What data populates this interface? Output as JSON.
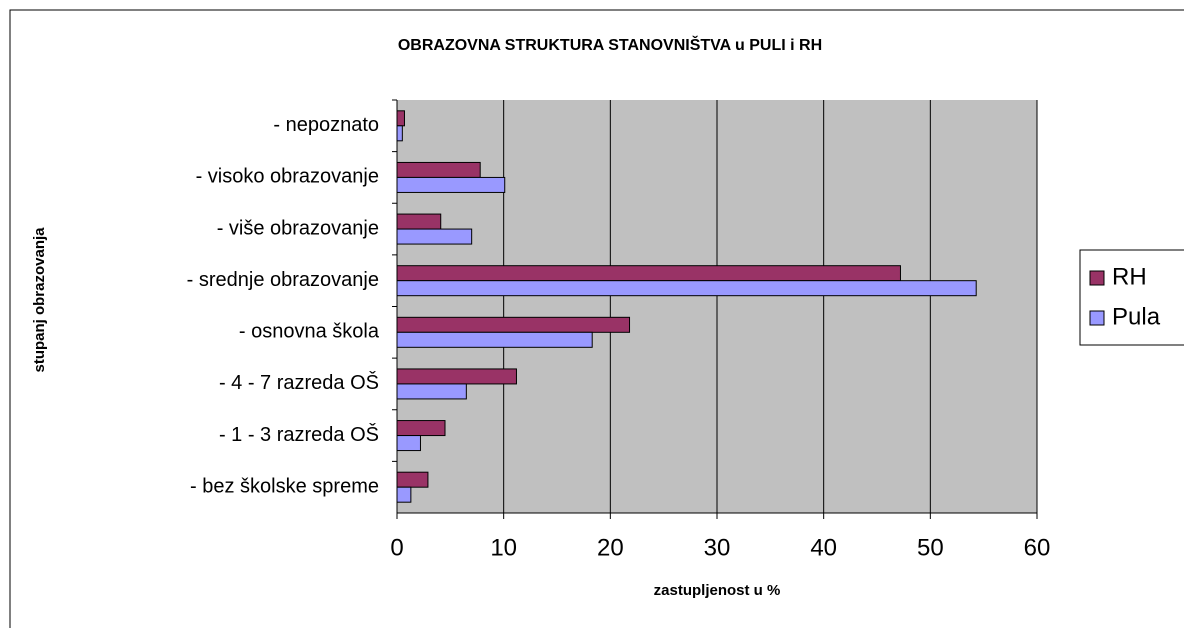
{
  "chart_data": {
    "type": "bar",
    "orientation": "horizontal",
    "title": "OBRAZOVNA STRUKTURA STANOVNIŠTVA u PULI  i RH",
    "x_label": "zastupljenost u %",
    "y_label": "stupanj obrazovanja",
    "categories": [
      "- nepoznato",
      "- visoko obrazovanje",
      "- više obrazovanje",
      "- srednje obrazovanje",
      "- osnovna škola",
      "- 4 - 7 razreda OŠ",
      "- 1 - 3 razreda OŠ",
      "- bez školske spreme"
    ],
    "series": [
      {
        "name": "RH",
        "color": "#993366",
        "values": [
          0.7,
          7.8,
          4.1,
          47.2,
          21.8,
          11.2,
          4.5,
          2.9
        ]
      },
      {
        "name": "Pula",
        "color": "#9999ff",
        "values": [
          0.5,
          10.1,
          7.0,
          54.3,
          18.3,
          6.5,
          2.2,
          1.3
        ]
      }
    ],
    "xlim": [
      0,
      60
    ],
    "xticks": [
      0,
      10,
      20,
      30,
      40,
      50,
      60
    ],
    "grid": true,
    "legend": "right"
  }
}
